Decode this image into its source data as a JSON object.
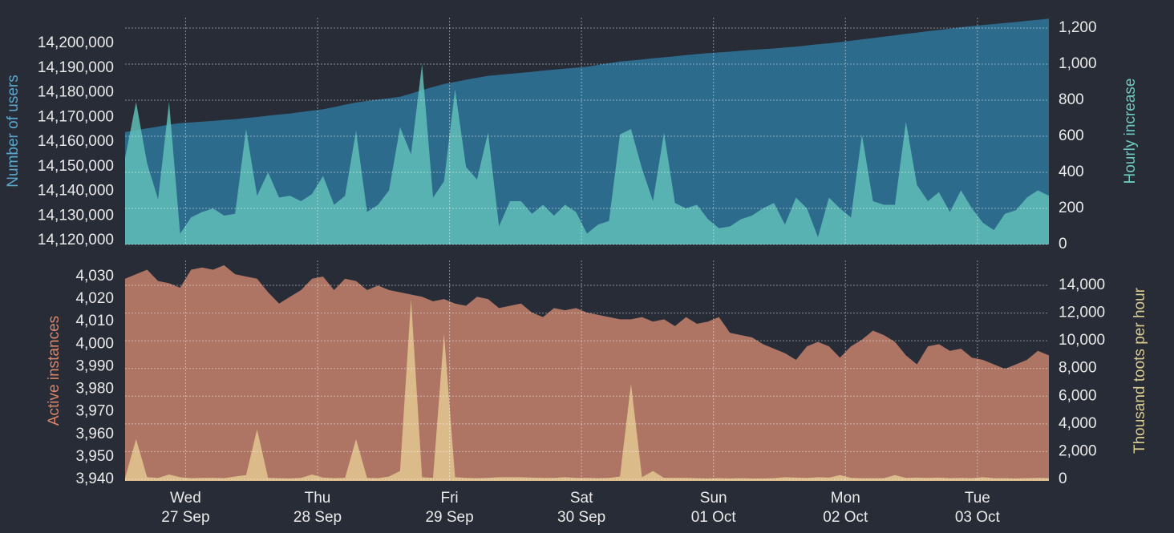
{
  "chart_data": [
    {
      "type": "area",
      "ylabel": "Number of users",
      "y2label": "Hourly increase",
      "x": [
        0,
        2,
        4,
        6,
        8,
        10,
        12,
        14,
        16,
        18,
        20,
        22,
        24,
        26,
        28,
        30,
        32,
        34,
        36,
        38,
        40,
        42,
        44,
        46,
        48,
        50,
        52,
        54,
        56,
        58,
        60,
        62,
        64,
        66,
        68,
        70,
        72,
        74,
        76,
        78,
        80,
        82,
        84,
        86,
        88,
        90,
        92,
        94,
        96,
        98,
        100,
        102,
        104,
        106,
        108,
        110,
        112,
        114,
        116,
        118,
        120,
        122,
        124,
        126,
        128,
        130,
        132,
        134,
        136,
        138,
        140,
        142,
        144,
        146,
        148,
        150,
        152,
        154,
        156,
        158,
        160,
        162,
        164,
        166,
        168
      ],
      "xlim": [
        0,
        168
      ],
      "xticks": [
        11,
        35,
        59,
        83,
        107,
        131,
        155
      ],
      "ylim": [
        14118400,
        14210400
      ],
      "yticks": [
        {
          "value": 14120000,
          "label": "14,120,000"
        },
        {
          "value": 14130000,
          "label": "14,130,000"
        },
        {
          "value": 14140000,
          "label": "14,140,000"
        },
        {
          "value": 14150000,
          "label": "14,150,000"
        },
        {
          "value": 14160000,
          "label": "14,160,000"
        },
        {
          "value": 14170000,
          "label": "14,170,000"
        },
        {
          "value": 14180000,
          "label": "14,180,000"
        },
        {
          "value": 14190000,
          "label": "14,190,000"
        },
        {
          "value": 14200000,
          "label": "14,200,000"
        }
      ],
      "y2lim": [
        0,
        1258
      ],
      "y2ticks": [
        0,
        200,
        400,
        600,
        800,
        {
          "value": 1000,
          "label": "1,000"
        },
        {
          "value": 1200,
          "label": "1,200"
        }
      ],
      "grid": true,
      "ylabel_color": "#5aa6cc",
      "y2label_color": "#6cc9bf",
      "series": [
        {
          "axis": "y",
          "color": "#2d6b8d",
          "opacity": 1,
          "values": [
            14164000,
            14164700,
            14165500,
            14166200,
            14167000,
            14167600,
            14167900,
            14168200,
            14168500,
            14168900,
            14169200,
            14169700,
            14170100,
            14170600,
            14171100,
            14171500,
            14172100,
            14172700,
            14173200,
            14174100,
            14175100,
            14176000,
            14176600,
            14177200,
            14177700,
            14178300,
            14179600,
            14181000,
            14182300,
            14183500,
            14184300,
            14185200,
            14186000,
            14186800,
            14187200,
            14187600,
            14188000,
            14188400,
            14188900,
            14189300,
            14189700,
            14190100,
            14190500,
            14191200,
            14191900,
            14192600,
            14193000,
            14193400,
            14193900,
            14194300,
            14194700,
            14195200,
            14195600,
            14196000,
            14196300,
            14196600,
            14197000,
            14197300,
            14197600,
            14197900,
            14198300,
            14198600,
            14199100,
            14199600,
            14200000,
            14200500,
            14201000,
            14201600,
            14202100,
            14202700,
            14203200,
            14203800,
            14204300,
            14204900,
            14205400,
            14205900,
            14206500,
            14207000,
            14207400,
            14207800,
            14208200,
            14208600,
            14209100,
            14209500,
            14210000
          ]
        },
        {
          "axis": "y2",
          "color": "#62c2b9",
          "opacity": 0.82,
          "values": [
            480,
            790,
            450,
            250,
            790,
            60,
            150,
            180,
            200,
            160,
            170,
            640,
            270,
            400,
            260,
            270,
            240,
            280,
            380,
            220,
            270,
            630,
            180,
            220,
            300,
            650,
            500,
            1000,
            260,
            350,
            860,
            430,
            360,
            620,
            100,
            240,
            240,
            170,
            220,
            160,
            220,
            180,
            60,
            110,
            130,
            610,
            640,
            420,
            240,
            620,
            230,
            200,
            220,
            140,
            90,
            100,
            140,
            160,
            200,
            230,
            110,
            260,
            200,
            40,
            260,
            200,
            150,
            610,
            240,
            220,
            220,
            680,
            330,
            240,
            290,
            180,
            300,
            200,
            120,
            80,
            170,
            190,
            260,
            300,
            270
          ]
        }
      ]
    },
    {
      "type": "area",
      "ylabel": "Active instances",
      "y2label": "Thousand toots per hour",
      "x": [
        0,
        2,
        4,
        6,
        8,
        10,
        12,
        14,
        16,
        18,
        20,
        22,
        24,
        26,
        28,
        30,
        32,
        34,
        36,
        38,
        40,
        42,
        44,
        46,
        48,
        50,
        52,
        54,
        56,
        58,
        60,
        62,
        64,
        66,
        68,
        70,
        72,
        74,
        76,
        78,
        80,
        82,
        84,
        86,
        88,
        90,
        92,
        94,
        96,
        98,
        100,
        102,
        104,
        106,
        108,
        110,
        112,
        114,
        116,
        118,
        120,
        122,
        124,
        126,
        128,
        130,
        132,
        134,
        136,
        138,
        140,
        142,
        144,
        146,
        148,
        150,
        152,
        154,
        156,
        158,
        160,
        162,
        164,
        166,
        168
      ],
      "xlim": [
        0,
        168
      ],
      "xticks": [
        {
          "value": 11,
          "label": [
            "Wed",
            "27 Sep"
          ]
        },
        {
          "value": 35,
          "label": [
            "Thu",
            "28 Sep"
          ]
        },
        {
          "value": 59,
          "label": [
            "Fri",
            "29 Sep"
          ]
        },
        {
          "value": 83,
          "label": [
            "Sat",
            "30 Sep"
          ]
        },
        {
          "value": 107,
          "label": [
            "Sun",
            "01 Oct"
          ]
        },
        {
          "value": 131,
          "label": [
            "Mon",
            "02 Oct"
          ]
        },
        {
          "value": 155,
          "label": [
            "Tue",
            "03 Oct"
          ]
        }
      ],
      "ylim": [
        3939.3,
        4037.1
      ],
      "yticks": [
        {
          "value": 3940,
          "label": "3,940"
        },
        {
          "value": 3950,
          "label": "3,950"
        },
        {
          "value": 3960,
          "label": "3,960"
        },
        {
          "value": 3970,
          "label": "3,970"
        },
        {
          "value": 3980,
          "label": "3,980"
        },
        {
          "value": 3990,
          "label": "3,990"
        },
        {
          "value": 4000,
          "label": "4,000"
        },
        {
          "value": 4010,
          "label": "4,010"
        },
        {
          "value": 4020,
          "label": "4,020"
        },
        {
          "value": 4030,
          "label": "4,030"
        }
      ],
      "y2lim": [
        -116,
        15793
      ],
      "y2ticks": [
        0,
        {
          "value": 2000,
          "label": "2,000"
        },
        {
          "value": 4000,
          "label": "4,000"
        },
        {
          "value": 6000,
          "label": "6,000"
        },
        {
          "value": 8000,
          "label": "8,000"
        },
        {
          "value": 10000,
          "label": "10,000"
        },
        {
          "value": 12000,
          "label": "12,000"
        },
        {
          "value": 14000,
          "label": "14,000"
        }
      ],
      "grid": true,
      "ylabel_color": "#d9866a",
      "y2label_color": "#d8cc8e",
      "series": [
        {
          "axis": "y",
          "color": "#ae7564",
          "opacity": 1,
          "values": [
            4029,
            4031,
            4033,
            4028,
            4027,
            4025,
            4033,
            4034,
            4033,
            4035,
            4031,
            4030,
            4029,
            4023,
            4018,
            4021,
            4024,
            4029,
            4030,
            4024,
            4029,
            4028,
            4024,
            4026,
            4024,
            4023,
            4022,
            4021,
            4019,
            4020,
            4018,
            4017,
            4021,
            4020,
            4016,
            4017,
            4018,
            4014,
            4012,
            4016,
            4015,
            4016,
            4014,
            4013,
            4012,
            4011,
            4011,
            4012,
            4010,
            4011,
            4008,
            4012,
            4009,
            4010,
            4012,
            4005,
            4004,
            4003,
            4000,
            3998,
            3996,
            3993,
            3999,
            4001,
            3999,
            3994,
            3999,
            4002,
            4006,
            4004,
            4001,
            3995,
            3991,
            3999,
            4000,
            3997,
            3998,
            3994,
            3993,
            3991,
            3989,
            3991,
            3993,
            3997,
            3995
          ]
        },
        {
          "axis": "y2",
          "color": "#dcbb8b",
          "opacity": 1,
          "values": [
            100,
            2900,
            150,
            100,
            350,
            150,
            80,
            100,
            100,
            80,
            200,
            300,
            3600,
            100,
            80,
            60,
            100,
            350,
            120,
            80,
            100,
            2900,
            100,
            80,
            200,
            600,
            13000,
            150,
            100,
            10500,
            150,
            100,
            80,
            100,
            150,
            150,
            150,
            120,
            100,
            100,
            150,
            100,
            100,
            80,
            100,
            200,
            6900,
            150,
            600,
            100,
            100,
            100,
            80,
            60,
            80,
            60,
            80,
            60,
            60,
            80,
            150,
            120,
            100,
            150,
            120,
            300,
            100,
            80,
            80,
            80,
            300,
            100,
            120,
            100,
            120,
            80,
            100,
            80,
            150,
            80,
            80,
            60,
            80,
            100,
            80
          ]
        }
      ]
    }
  ]
}
